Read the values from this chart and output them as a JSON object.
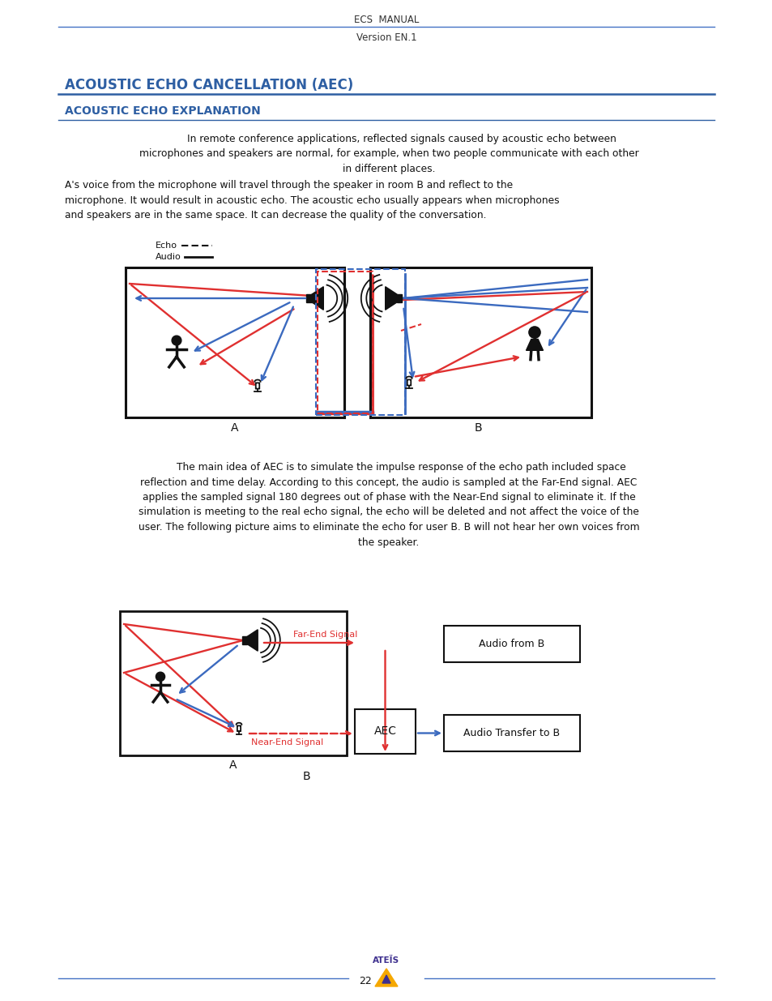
{
  "page_bg": "#ffffff",
  "header_text1": "ECS  MANUAL",
  "header_text2": "Version EN.1",
  "header_line_color": "#4472c4",
  "title_main": "ACOUSTIC ECHO CANCELLATION (AEC)",
  "title_sub": "ACOUSTIC ECHO EXPLANATION",
  "title_color": "#2e5fa3",
  "body_text1": "        In remote conference applications, reflected signals caused by acoustic echo between\nmicrophones and speakers are normal, for example, when two people communicate with each other\nin different places.",
  "body_text2": "A's voice from the microphone will travel through the speaker in room B and reflect to the\nmicrophone. It would result in acoustic echo. The acoustic echo usually appears when microphones\nand speakers are in the same space. It can decrease the quality of the conversation.",
  "body_text3": "        The main idea of AEC is to simulate the impulse response of the echo path included space\nreflection and time delay. According to this concept, the audio is sampled at the Far-End signal. AEC\napplies the sampled signal 180 degrees out of phase with the Near-End signal to eliminate it. If the\nsimulation is meeting to the real echo signal, the echo will be deleted and not affect the voice of the\nuser. The following picture aims to eliminate the echo for user B. B will not hear her own voices from\nthe speaker.",
  "footer_line_color": "#4472c4",
  "footer_page": "22",
  "red_color": "#e03030",
  "blue_color": "#3b6abf",
  "black_color": "#111111"
}
